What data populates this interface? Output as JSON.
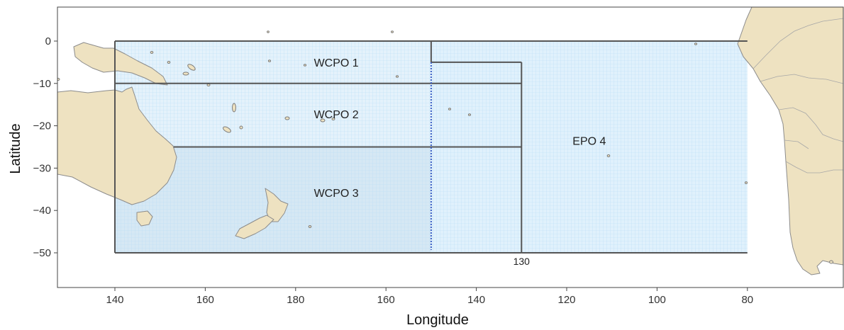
{
  "axes": {
    "xlabel": "Longitude",
    "ylabel": "Latitude",
    "x_ticks": [
      {
        "label": "140",
        "lon": 140
      },
      {
        "label": "160",
        "lon": 160
      },
      {
        "label": "180",
        "lon": 180
      },
      {
        "label": "160",
        "lon": 200
      },
      {
        "label": "140",
        "lon": 220
      },
      {
        "label": "120",
        "lon": 240
      },
      {
        "label": "100",
        "lon": 260
      },
      {
        "label": "80",
        "lon": 280
      }
    ],
    "y_ticks": [
      {
        "label": "0",
        "lat": 0
      },
      {
        "label": "−10",
        "lat": -10
      },
      {
        "label": "−20",
        "lat": -20
      },
      {
        "label": "−30",
        "lat": -30
      },
      {
        "label": "−40",
        "lat": -40
      },
      {
        "label": "−50",
        "lat": -50
      }
    ],
    "lon_range": [
      132,
      306
    ],
    "lat_range": [
      -58,
      8
    ]
  },
  "regions": [
    {
      "id": "wcpo1",
      "label": "WCPO 1",
      "fill": "#e4f2fb",
      "bounds": {
        "lon_min": 140,
        "lon_max": 210,
        "lat_min": -10,
        "lat_max": 0
      }
    },
    {
      "id": "wcpo2",
      "label": "WCPO 2",
      "fill": "#e4f2fb",
      "bounds": {
        "lon_min": 140,
        "lon_max": 230,
        "lat_min": -25,
        "lat_max": -10
      }
    },
    {
      "id": "wcpo3",
      "label": "WCPO 3",
      "fill": "#d6e8f4",
      "bounds": {
        "lon_min": 140,
        "lon_max": 230,
        "lat_min": -50,
        "lat_max": -25
      }
    },
    {
      "id": "epo4",
      "label": "EPO 4",
      "fill": "#e0f1fc",
      "bounds": {
        "lon_min": 210,
        "lon_max": 280,
        "lat_min": -50,
        "lat_max": 0
      }
    }
  ],
  "divider": {
    "lon": 210,
    "lat_min": -50,
    "lat_max": 0,
    "color": "#3b5fc4"
  },
  "marker": {
    "label": "130",
    "lon": 230
  },
  "colors": {
    "land": "#eee2c1",
    "coast": "#8c8c8c",
    "box_edge": "#555555",
    "grid": "#b8dcf5",
    "panel_border": "#444444"
  }
}
